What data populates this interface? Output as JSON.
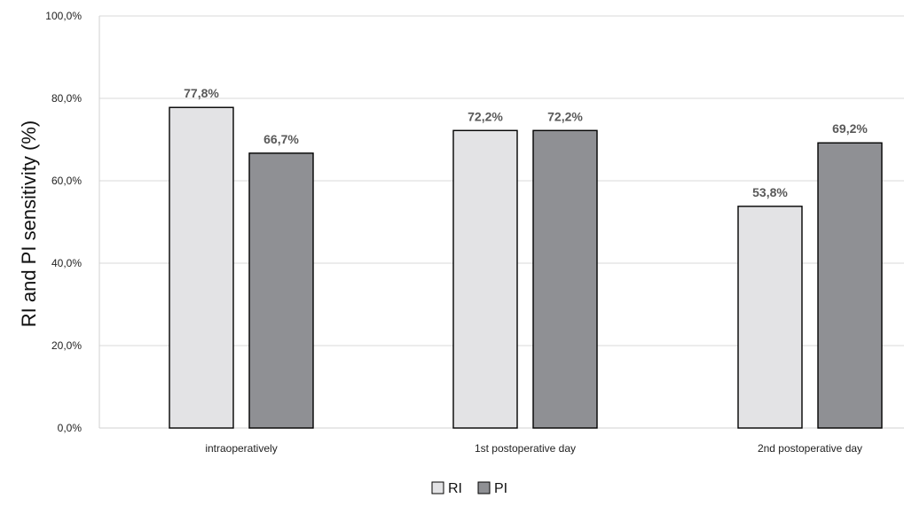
{
  "chart_data": {
    "type": "bar",
    "categories": [
      "intraoperatively",
      "1st postoperative day",
      "2nd postoperative day"
    ],
    "series": [
      {
        "name": "RI",
        "values": [
          77.8,
          72.2,
          53.8
        ],
        "labels": [
          "77,8%",
          "72,2%",
          "53,8%"
        ],
        "color": "#e3e3e5"
      },
      {
        "name": "PI",
        "values": [
          66.7,
          72.2,
          69.2
        ],
        "labels": [
          "66,7%",
          "72,2%",
          "69,2%"
        ],
        "color": "#8f9094"
      }
    ],
    "title": "",
    "xlabel": "",
    "ylabel": "RI and PI sensitivity (%)",
    "ylim": [
      0,
      100
    ],
    "yticks": [
      0,
      20,
      40,
      60,
      80,
      100
    ],
    "ytick_labels": [
      "0,0%",
      "20,0%",
      "40,0%",
      "60,0%",
      "80,0%",
      "100,0%"
    ],
    "grid": true,
    "gridline_color": "#d9d9d9",
    "bar_outline_color": "#000000",
    "data_label_color": "#595959",
    "legend_position": "bottom-center"
  }
}
